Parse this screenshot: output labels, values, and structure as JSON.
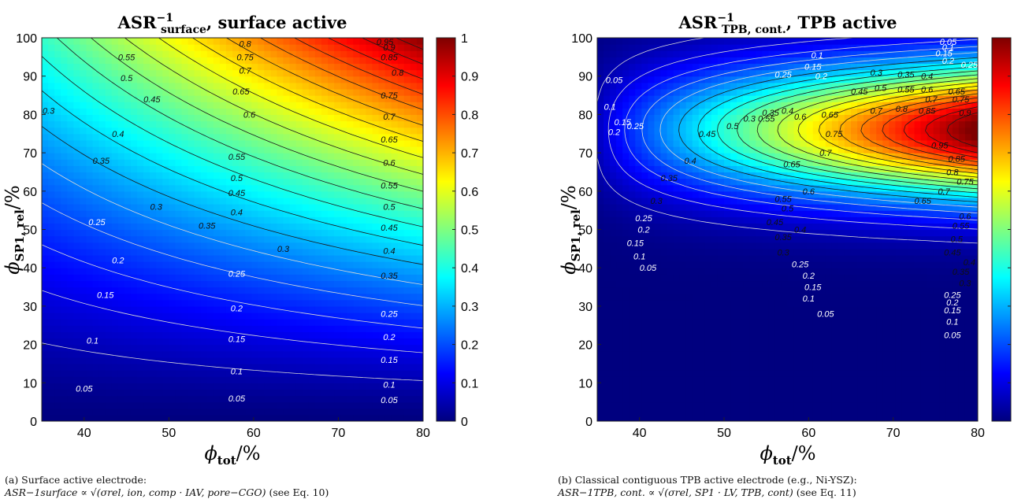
{
  "colormap": [
    "#00007f",
    "#0000ff",
    "#007fff",
    "#00ffff",
    "#7fff7f",
    "#ffff00",
    "#ff7f00",
    "#ff0000",
    "#7f0000"
  ],
  "chart_data": [
    {
      "type": "heatmap",
      "title_main": "ASR",
      "title_sup": "−1",
      "title_sub": "surface",
      "title_rest": ", surface active",
      "xlabel_main": "ϕ",
      "xlabel_sub": "tot",
      "xlabel_unit": "/%",
      "ylabel_main": "ϕ",
      "ylabel_sub": "SP1, rel",
      "ylabel_unit": "/%",
      "xlim": [
        35,
        80
      ],
      "ylim": [
        0,
        100
      ],
      "xticks": [
        "40",
        "50",
        "60",
        "70",
        "80"
      ],
      "yticks": [
        "0",
        "10",
        "20",
        "30",
        "40",
        "50",
        "60",
        "70",
        "80",
        "90",
        "100"
      ],
      "colorbar_ticks": [
        "0",
        "0.1",
        "0.2",
        "0.3",
        "0.4",
        "0.5",
        "0.6",
        "0.7",
        "0.8",
        "0.9",
        "1"
      ],
      "clim": [
        0,
        1
      ],
      "contour_levels": [
        0.05,
        0.1,
        0.15,
        0.2,
        0.25,
        0.3,
        0.35,
        0.4,
        0.45,
        0.5,
        0.55,
        0.6,
        0.65,
        0.7,
        0.75,
        0.8,
        0.85,
        0.9,
        0.95
      ],
      "contour_labels": [
        {
          "text": "0.05",
          "x": 40,
          "y": 8.5
        },
        {
          "text": "0.05",
          "x": 58,
          "y": 6
        },
        {
          "text": "0.05",
          "x": 76,
          "y": 5.5
        },
        {
          "text": "0.1",
          "x": 41,
          "y": 21
        },
        {
          "text": "0.1",
          "x": 58,
          "y": 13
        },
        {
          "text": "0.1",
          "x": 76,
          "y": 9.5
        },
        {
          "text": "0.15",
          "x": 42.5,
          "y": 33
        },
        {
          "text": "0.15",
          "x": 58,
          "y": 21.5
        },
        {
          "text": "0.15",
          "x": 76,
          "y": 16
        },
        {
          "text": "0.2",
          "x": 44,
          "y": 42
        },
        {
          "text": "0.2",
          "x": 58,
          "y": 29.5
        },
        {
          "text": "0.2",
          "x": 76,
          "y": 22
        },
        {
          "text": "0.25",
          "x": 41.5,
          "y": 52
        },
        {
          "text": "0.25",
          "x": 58,
          "y": 38.5
        },
        {
          "text": "0.25",
          "x": 76,
          "y": 28
        },
        {
          "text": "0.3",
          "x": 48.5,
          "y": 56
        },
        {
          "text": "0.3",
          "x": 63.5,
          "y": 45
        },
        {
          "text": "0.3",
          "x": 35.8,
          "y": 81
        },
        {
          "text": "0.35",
          "x": 42,
          "y": 68
        },
        {
          "text": "0.35",
          "x": 54.5,
          "y": 51
        },
        {
          "text": "0.35",
          "x": 76,
          "y": 38
        },
        {
          "text": "0.4",
          "x": 44,
          "y": 75
        },
        {
          "text": "0.4",
          "x": 58,
          "y": 54.5
        },
        {
          "text": "0.4",
          "x": 76,
          "y": 44.5
        },
        {
          "text": "0.45",
          "x": 48,
          "y": 84
        },
        {
          "text": "0.45",
          "x": 58,
          "y": 59.5
        },
        {
          "text": "0.45",
          "x": 76,
          "y": 50.5
        },
        {
          "text": "0.5",
          "x": 45,
          "y": 89.5
        },
        {
          "text": "0.5",
          "x": 58,
          "y": 63.5
        },
        {
          "text": "0.5",
          "x": 76,
          "y": 56
        },
        {
          "text": "0.55",
          "x": 45,
          "y": 95
        },
        {
          "text": "0.55",
          "x": 58,
          "y": 69
        },
        {
          "text": "0.55",
          "x": 76,
          "y": 61.5
        },
        {
          "text": "0.6",
          "x": 59.5,
          "y": 80
        },
        {
          "text": "0.6",
          "x": 76,
          "y": 67.5
        },
        {
          "text": "0.65",
          "x": 58.5,
          "y": 86
        },
        {
          "text": "0.65",
          "x": 76,
          "y": 73.5
        },
        {
          "text": "0.7",
          "x": 59,
          "y": 91.5
        },
        {
          "text": "0.7",
          "x": 76,
          "y": 79.5
        },
        {
          "text": "0.75",
          "x": 59,
          "y": 95
        },
        {
          "text": "0.75",
          "x": 76,
          "y": 85
        },
        {
          "text": "0.8",
          "x": 59,
          "y": 98.5
        },
        {
          "text": "0.8",
          "x": 77,
          "y": 91
        },
        {
          "text": "0.85",
          "x": 76,
          "y": 95
        },
        {
          "text": "0.9",
          "x": 76,
          "y": 97.5
        },
        {
          "text": "0.95",
          "x": 75.5,
          "y": 99
        }
      ],
      "caption_line1": "(a) Surface active electrode:",
      "caption_formula": "ASR−1surface ∝ √(σrel, ion, comp · IAV, pore−CGO)",
      "caption_ref": "(see Eq. 10)"
    },
    {
      "type": "heatmap",
      "title_main": "ASR",
      "title_sup": "−1",
      "title_sub": "TPB, cont.",
      "title_rest": ",  TPB active",
      "xlabel_main": "ϕ",
      "xlabel_sub": "tot",
      "xlabel_unit": "/%",
      "ylabel_main": "ϕ",
      "ylabel_sub": "SP1, rel",
      "ylabel_unit": "/%",
      "xlim": [
        35,
        80
      ],
      "ylim": [
        0,
        100
      ],
      "xticks": [
        "40",
        "50",
        "60",
        "70",
        "80"
      ],
      "yticks": [
        "0",
        "10",
        "20",
        "30",
        "40",
        "50",
        "60",
        "70",
        "80",
        "90",
        "100"
      ],
      "colorbar_ticks": [
        "0",
        "0.1",
        "0.2",
        "0.3",
        "0.4",
        "0.5",
        "0.6",
        "0.7",
        "0.8",
        "0.9",
        "1"
      ],
      "clim": [
        0,
        1
      ],
      "contour_levels": [
        0.05,
        0.1,
        0.15,
        0.2,
        0.25,
        0.3,
        0.35,
        0.4,
        0.45,
        0.5,
        0.55,
        0.6,
        0.65,
        0.7,
        0.75,
        0.8,
        0.85,
        0.9,
        0.95
      ],
      "contour_labels": [
        {
          "text": "0.05",
          "x": 37,
          "y": 89
        },
        {
          "text": "0.05",
          "x": 76.5,
          "y": 99
        },
        {
          "text": "0.05",
          "x": 41,
          "y": 40
        },
        {
          "text": "0.05",
          "x": 62,
          "y": 28
        },
        {
          "text": "0.05",
          "x": 77,
          "y": 22.5
        },
        {
          "text": "0.1",
          "x": 36.5,
          "y": 82
        },
        {
          "text": "0.1",
          "x": 61,
          "y": 95.5
        },
        {
          "text": "0.1",
          "x": 76.5,
          "y": 97.5
        },
        {
          "text": "0.1",
          "x": 40,
          "y": 43
        },
        {
          "text": "0.1",
          "x": 60,
          "y": 32
        },
        {
          "text": "0.1",
          "x": 77,
          "y": 26
        },
        {
          "text": "0.15",
          "x": 38,
          "y": 78
        },
        {
          "text": "0.15",
          "x": 60.5,
          "y": 92.5
        },
        {
          "text": "0.15",
          "x": 76,
          "y": 96
        },
        {
          "text": "0.15",
          "x": 39.5,
          "y": 46.5
        },
        {
          "text": "0.15",
          "x": 60.5,
          "y": 35
        },
        {
          "text": "0.15",
          "x": 77,
          "y": 29
        },
        {
          "text": "0.2",
          "x": 37,
          "y": 75.5
        },
        {
          "text": "0.2",
          "x": 61.5,
          "y": 90
        },
        {
          "text": "0.2",
          "x": 76.5,
          "y": 94
        },
        {
          "text": "0.2",
          "x": 40.5,
          "y": 50
        },
        {
          "text": "0.2",
          "x": 60,
          "y": 38
        },
        {
          "text": "0.2",
          "x": 77,
          "y": 31
        },
        {
          "text": "0.25",
          "x": 39.5,
          "y": 77
        },
        {
          "text": "0.25",
          "x": 57,
          "y": 90.5
        },
        {
          "text": "0.25",
          "x": 79,
          "y": 93
        },
        {
          "text": "0.25",
          "x": 40.5,
          "y": 53
        },
        {
          "text": "0.25",
          "x": 59,
          "y": 41
        },
        {
          "text": "0.25",
          "x": 77,
          "y": 33
        },
        {
          "text": "0.3",
          "x": 53,
          "y": 79
        },
        {
          "text": "0.3",
          "x": 68,
          "y": 91
        },
        {
          "text": "0.3",
          "x": 42,
          "y": 57.5
        },
        {
          "text": "0.3",
          "x": 57,
          "y": 44
        },
        {
          "text": "0.3",
          "x": 78.5,
          "y": 36
        },
        {
          "text": "0.35",
          "x": 55.5,
          "y": 80.5
        },
        {
          "text": "0.35",
          "x": 71.5,
          "y": 90.5
        },
        {
          "text": "0.35",
          "x": 43.5,
          "y": 63.5
        },
        {
          "text": "0.35",
          "x": 57,
          "y": 48
        },
        {
          "text": "0.35",
          "x": 78,
          "y": 39
        },
        {
          "text": "0.4",
          "x": 57.5,
          "y": 81
        },
        {
          "text": "0.4",
          "x": 74,
          "y": 90
        },
        {
          "text": "0.4",
          "x": 46,
          "y": 68
        },
        {
          "text": "0.4",
          "x": 59,
          "y": 50
        },
        {
          "text": "0.4",
          "x": 79,
          "y": 41.5
        },
        {
          "text": "0.45",
          "x": 48,
          "y": 75
        },
        {
          "text": "0.45",
          "x": 66,
          "y": 86
        },
        {
          "text": "0.45",
          "x": 56,
          "y": 52
        },
        {
          "text": "0.45",
          "x": 77,
          "y": 44
        },
        {
          "text": "0.5",
          "x": 51,
          "y": 77
        },
        {
          "text": "0.5",
          "x": 68.5,
          "y": 87
        },
        {
          "text": "0.5",
          "x": 57.5,
          "y": 55.5
        },
        {
          "text": "0.5",
          "x": 77.5,
          "y": 47.5
        },
        {
          "text": "0.55",
          "x": 55,
          "y": 79
        },
        {
          "text": "0.55",
          "x": 71.5,
          "y": 86.5
        },
        {
          "text": "0.55",
          "x": 57,
          "y": 58
        },
        {
          "text": "0.55",
          "x": 78,
          "y": 51
        },
        {
          "text": "0.6",
          "x": 59,
          "y": 79.5
        },
        {
          "text": "0.6",
          "x": 74,
          "y": 86.5
        },
        {
          "text": "0.6",
          "x": 60,
          "y": 60
        },
        {
          "text": "0.6",
          "x": 78.5,
          "y": 53.5
        },
        {
          "text": "0.65",
          "x": 62.5,
          "y": 80
        },
        {
          "text": "0.65",
          "x": 77.5,
          "y": 86
        },
        {
          "text": "0.65",
          "x": 58,
          "y": 67
        },
        {
          "text": "0.65",
          "x": 73.5,
          "y": 57.5
        },
        {
          "text": "0.7",
          "x": 68,
          "y": 81
        },
        {
          "text": "0.7",
          "x": 74.5,
          "y": 84
        },
        {
          "text": "0.7",
          "x": 62,
          "y": 70
        },
        {
          "text": "0.7",
          "x": 76,
          "y": 60
        },
        {
          "text": "0.75",
          "x": 63,
          "y": 75
        },
        {
          "text": "0.75",
          "x": 78,
          "y": 84
        },
        {
          "text": "0.75",
          "x": 78.5,
          "y": 62.5
        },
        {
          "text": "0.8",
          "x": 71,
          "y": 81.5
        },
        {
          "text": "0.8",
          "x": 77,
          "y": 65
        },
        {
          "text": "0.85",
          "x": 74,
          "y": 81
        },
        {
          "text": "0.85",
          "x": 77.5,
          "y": 68.5
        },
        {
          "text": "0.9",
          "x": 78.5,
          "y": 80.5
        },
        {
          "text": "0.95",
          "x": 75.5,
          "y": 72
        }
      ],
      "caption_line1": "(b) Classical contiguous TPB active electrode (e.g., Ni-YSZ):",
      "caption_formula": "ASR−1TPB, cont. ∝ √(σrel, SP1 · LV, TPB, cont)",
      "caption_ref": "(see Eq. 11)"
    }
  ]
}
